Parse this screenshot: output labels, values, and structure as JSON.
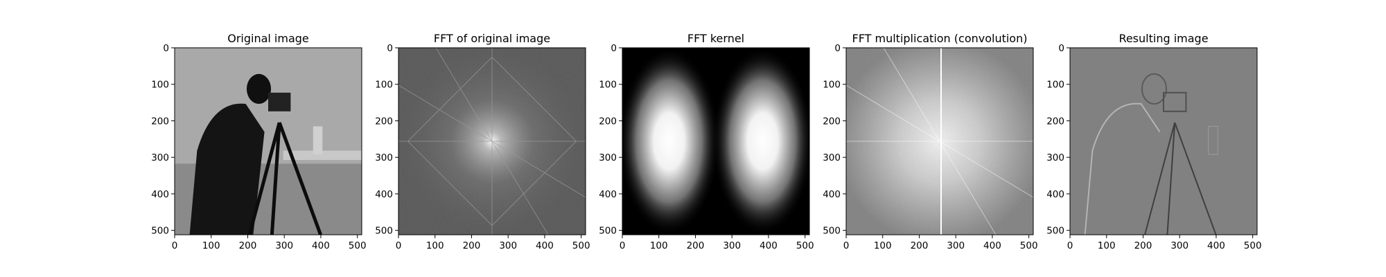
{
  "chart_data": [
    {
      "type": "heatmap",
      "title": "Original image",
      "content": "cameraman photograph",
      "colormap": "gray",
      "xlim": [
        0,
        512
      ],
      "ylim": [
        512,
        0
      ],
      "x_ticks": [
        0,
        100,
        200,
        300,
        400,
        500
      ],
      "y_ticks": [
        0,
        100,
        200,
        300,
        400,
        500
      ]
    },
    {
      "type": "heatmap",
      "title": "FFT of original image",
      "content": "log-magnitude spectrum, bright center near (256, 256)",
      "colormap": "gray",
      "xlim": [
        0,
        512
      ],
      "ylim": [
        512,
        0
      ],
      "x_ticks": [
        0,
        100,
        200,
        300,
        400,
        500
      ],
      "y_ticks": [
        0,
        100,
        200,
        300,
        400,
        500
      ]
    },
    {
      "type": "heatmap",
      "title": "FFT kernel",
      "content": "two bright gaussian lobes centered near (128, 256) and (384, 256), dark at x=256",
      "colormap": "gray",
      "xlim": [
        0,
        512
      ],
      "ylim": [
        512,
        0
      ],
      "x_ticks": [
        0,
        100,
        200,
        300,
        400,
        500
      ],
      "y_ticks": [
        0,
        100,
        200,
        300,
        400,
        500
      ]
    },
    {
      "type": "heatmap",
      "title": "FFT multiplication (convolution)",
      "content": "product spectrum, bright vertical line near x=256",
      "colormap": "gray",
      "xlim": [
        0,
        512
      ],
      "ylim": [
        512,
        0
      ],
      "x_ticks": [
        0,
        100,
        200,
        300,
        400,
        500
      ],
      "y_ticks": [
        0,
        100,
        200,
        300,
        400,
        500
      ]
    },
    {
      "type": "heatmap",
      "title": "Resulting image",
      "content": "edge-filtered cameraman (emboss-like) on mid-gray",
      "colormap": "gray",
      "xlim": [
        0,
        512
      ],
      "ylim": [
        512,
        0
      ],
      "x_ticks": [
        0,
        100,
        200,
        300,
        400,
        500
      ],
      "y_ticks": [
        0,
        100,
        200,
        300,
        400,
        500
      ]
    }
  ]
}
